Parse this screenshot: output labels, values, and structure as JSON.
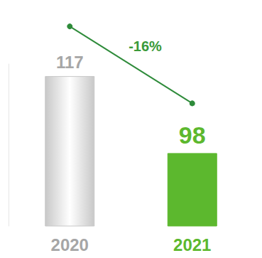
{
  "chart_data": {
    "type": "bar",
    "categories": [
      "2020",
      "2021"
    ],
    "values": [
      117,
      98
    ],
    "colors": [
      "#c8c8c8",
      "#5cb82e"
    ],
    "ylim": [
      80,
      120
    ],
    "data_labels": true,
    "tick_labels": "x",
    "grid": false,
    "annotation": "-16%"
  }
}
